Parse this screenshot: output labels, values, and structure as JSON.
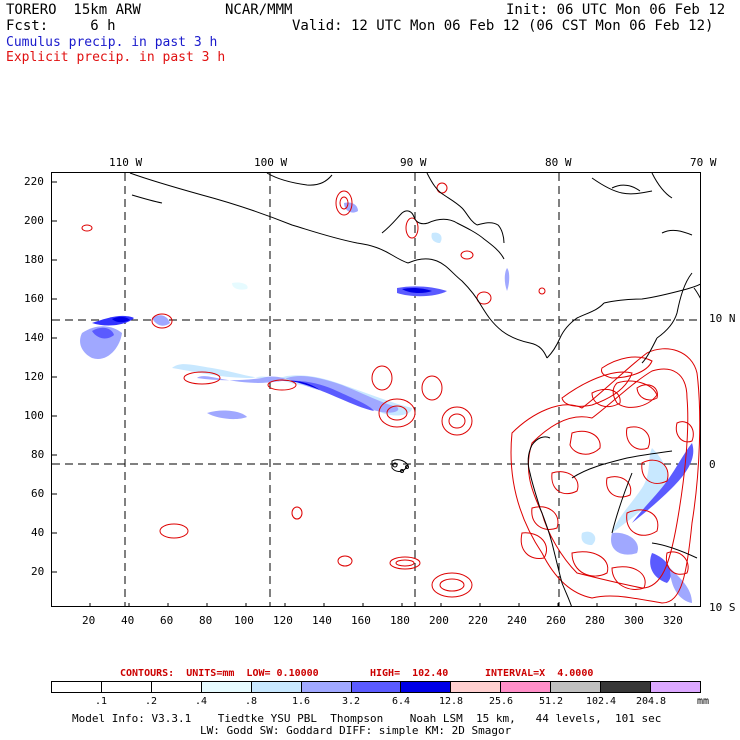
{
  "header": {
    "model": "TORERO  15km ARW",
    "org": "NCAR/MMM",
    "init": "Init: 06 UTC Mon 06 Feb 12",
    "fcst": "Fcst:     6 h",
    "valid": "Valid: 12 UTC Mon 06 Feb 12 (06 CST Mon 06 Feb 12)",
    "field1": "Cumulus precip. in past 3 h",
    "field2": "Explicit precip. in past 3 h"
  },
  "map": {
    "lon_labels": [
      "110 W",
      "100 W",
      "90 W",
      "80 W",
      "70 W"
    ],
    "lat_labels": [
      "10 N",
      "0",
      "10 S"
    ],
    "y_ticks": [
      "220",
      "200",
      "180",
      "160",
      "140",
      "120",
      "100",
      "80",
      "60",
      "40",
      "20"
    ],
    "x_ticks": [
      "20",
      "40",
      "60",
      "80",
      "100",
      "120",
      "140",
      "160",
      "180",
      "200",
      "220",
      "240",
      "260",
      "280",
      "300",
      "320"
    ],
    "colors": {
      "cumulus": "#3333ff",
      "explicit": "#dd0000",
      "coast": "#000000"
    }
  },
  "contour_info": {
    "label": "CONTOURS:  UNITS=mm  LOW= 0.10000",
    "high": "HIGH=  102.40",
    "interval": "INTERVAL=X  4.0000"
  },
  "colorbar": {
    "labels": [
      ".1",
      ".2",
      ".4",
      ".8",
      "1.6",
      "3.2",
      "6.4",
      "12.8",
      "25.6",
      "51.2",
      "102.4",
      "204.8"
    ],
    "unit": "mm",
    "colors": [
      "#ffffff",
      "#ffffff",
      "#ffffff",
      "#e6fbff",
      "#c8e8ff",
      "#a0a8ff",
      "#5b5bff",
      "#0000e6",
      "#ffd0d0",
      "#ff8fc8",
      "#c0c0c0",
      "#383838",
      "#dca8ff"
    ]
  },
  "footer": {
    "line1": "Model Info: V3.3.1    Tiedtke YSU PBL  Thompson    Noah LSM  15 km,   44 levels,  101 sec",
    "line2": "LW: Godd SW: Goddard DIFF: simple KM: 2D Smagor"
  }
}
